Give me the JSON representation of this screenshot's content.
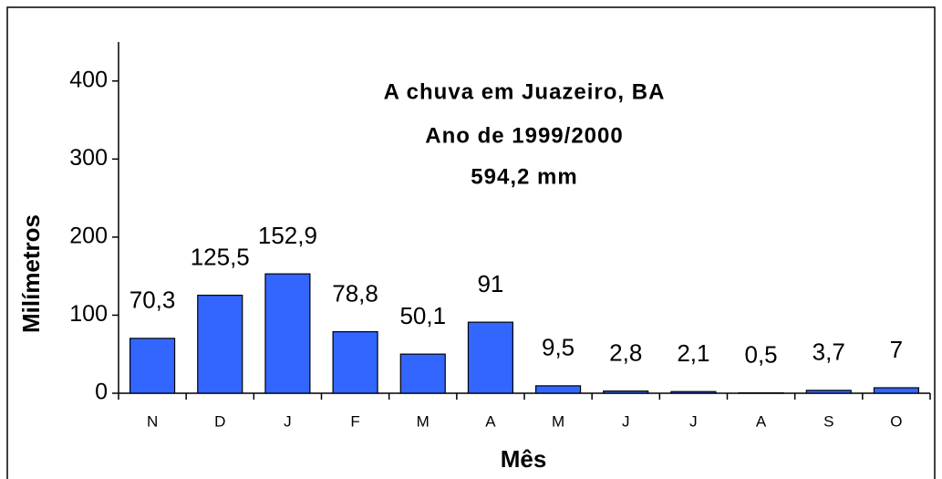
{
  "chart_data": {
    "type": "bar",
    "title": [
      "A chuva em Juazeiro, BA",
      "Ano de 1999/2000",
      "594,2 mm"
    ],
    "x_label": "Mês",
    "y_label": "Milímetros",
    "categories": [
      "N",
      "D",
      "J",
      "F",
      "M",
      "A",
      "M",
      "J",
      "J",
      "A",
      "S",
      "O"
    ],
    "values": [
      70.3,
      125.5,
      152.9,
      78.8,
      50.1,
      91,
      9.5,
      2.8,
      2.1,
      0.5,
      3.7,
      7
    ],
    "value_labels": [
      "70,3",
      "125,5",
      "152,9",
      "78,8",
      "50,1",
      "91",
      "9,5",
      "2,8",
      "2,1",
      "0,5",
      "3,7",
      "7"
    ],
    "color": "#3366ff",
    "ylim": [
      0,
      450
    ],
    "yticks": [
      0,
      100,
      200,
      300,
      400
    ],
    "grid": false
  }
}
